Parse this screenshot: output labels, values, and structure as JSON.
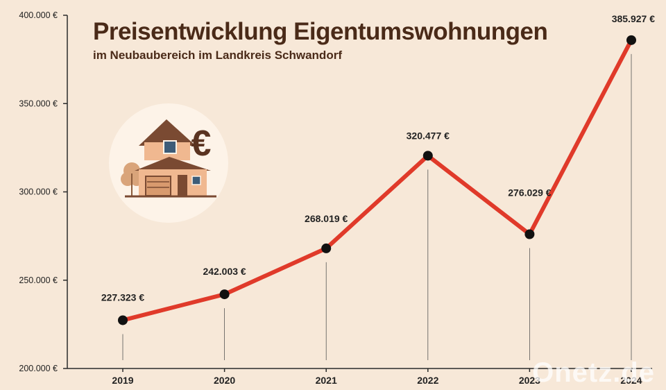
{
  "chart_data": {
    "type": "line",
    "title": "Preisentwicklung Eigentumswohnungen",
    "subtitle": "im Neubaubereich im Landkreis Schwandorf",
    "categories": [
      "2019",
      "2020",
      "2021",
      "2022",
      "2023",
      "2024"
    ],
    "values": [
      227323,
      242003,
      268019,
      320477,
      276029,
      385927
    ],
    "value_labels": [
      "227.323 €",
      "242.003 €",
      "268.019 €",
      "320.477 €",
      "276.029 €",
      "385.927 €"
    ],
    "ylim": [
      200000,
      400000
    ],
    "yticks": [
      200000,
      250000,
      300000,
      350000,
      400000
    ],
    "ytick_labels": [
      "200.000 €",
      "250.000 €",
      "300.000 €",
      "350.000 €",
      "400.000 €"
    ],
    "xlabel": "",
    "ylabel": "",
    "grid": false,
    "colors": {
      "line": "#e03a2a",
      "marker": "#111111",
      "background": "#f7e8d8",
      "title": "#4a2a18"
    }
  },
  "illustration": {
    "icon": "house-with-euro-icon",
    "symbol": "€"
  },
  "watermark": "Onetz.de"
}
